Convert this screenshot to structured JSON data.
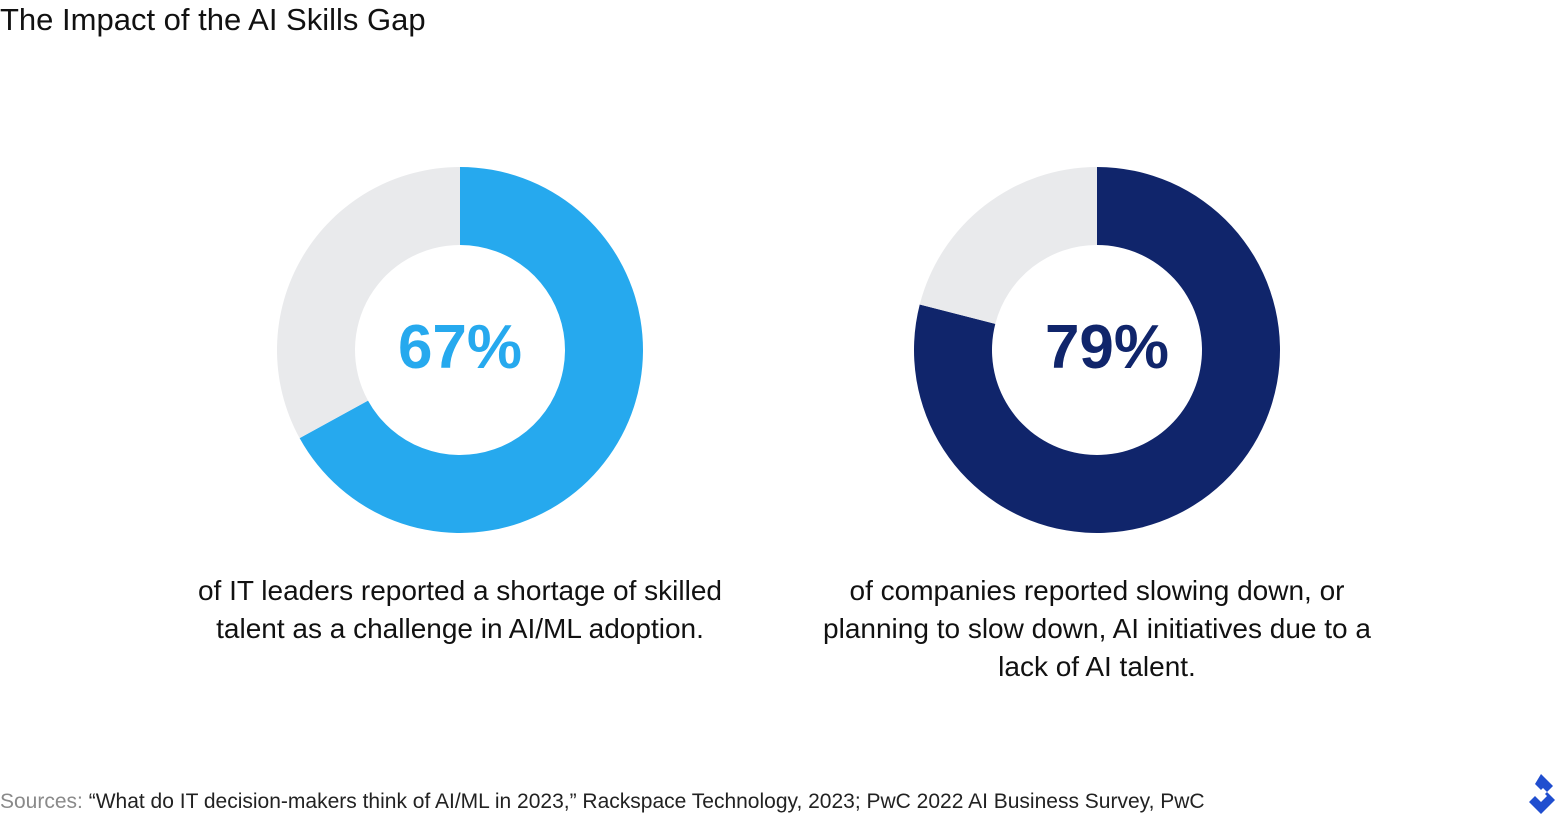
{
  "title": "The Impact of the AI Skills Gap",
  "chart_data": [
    {
      "type": "pie",
      "variant": "donut",
      "values": [
        67,
        33
      ],
      "label": "67%",
      "caption": "of IT leaders reported a shortage of skilled talent as a challenge in AI/ML adoption.",
      "colors": [
        "#26a9ee",
        "#e9eaec"
      ]
    },
    {
      "type": "pie",
      "variant": "donut",
      "values": [
        79,
        21
      ],
      "label": "79%",
      "caption": "of companies reported slowing down, or planning to slow down, AI initiatives due to a lack of AI talent.",
      "colors": [
        "#10256b",
        "#e9eaec"
      ]
    }
  ],
  "sources": {
    "label": "Sources:",
    "text": "“What do IT decision-makers think of AI/ML in 2023,” Rackspace Technology, 2023; PwC 2022 AI Business Survey, PwC"
  },
  "logo": {
    "icon": "toptal-logo",
    "color": "#204ecf"
  }
}
